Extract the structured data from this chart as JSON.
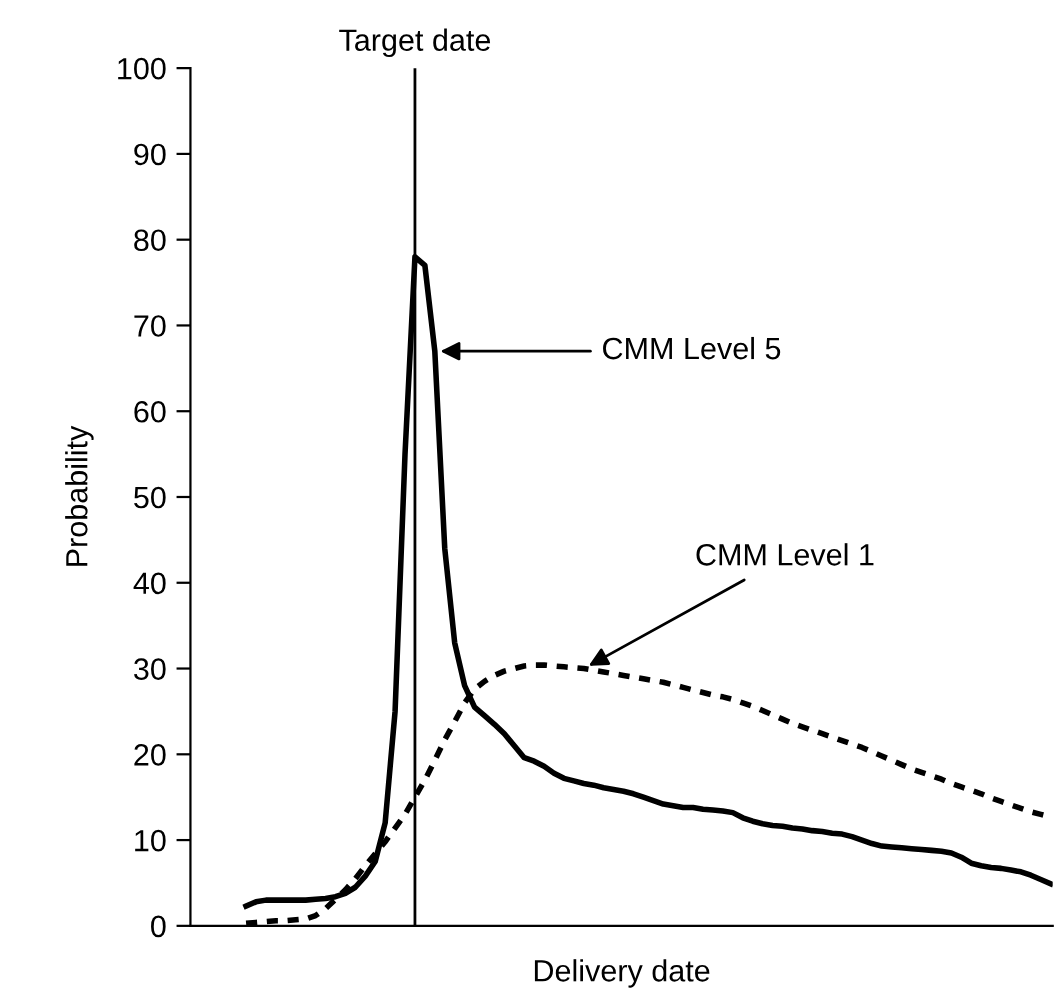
{
  "chart_data": {
    "type": "line",
    "xlabel": "Delivery date",
    "ylabel": "Probability",
    "categories": [
      null,
      null,
      null,
      null,
      null,
      null,
      null,
      null,
      null,
      null,
      null,
      null,
      null,
      null,
      null,
      null,
      null,
      null,
      null,
      null,
      null,
      null,
      null,
      null,
      null,
      null,
      null,
      null,
      null,
      null,
      null,
      null,
      null,
      null,
      null,
      null,
      null,
      null,
      null,
      null,
      null,
      null,
      null,
      null,
      null,
      null,
      null,
      null,
      null,
      null,
      null,
      null,
      null,
      null,
      null,
      null,
      null,
      null,
      null,
      null,
      null,
      null,
      null,
      null,
      null,
      null,
      null,
      null,
      null,
      null,
      null,
      null,
      null,
      null,
      null,
      null,
      null,
      null,
      null,
      null,
      null,
      null
    ],
    "series": [
      {
        "name": "CMM Level 5",
        "color": "#000000",
        "line_style": "solid",
        "values": [
          2.3,
          2.8,
          3.0,
          3.0,
          3.0,
          3.0,
          3.0,
          3.1,
          3.2,
          3.4,
          3.8,
          4.5,
          5.8,
          7.5,
          12,
          25,
          55,
          78,
          77,
          67,
          44,
          33,
          28,
          25.5,
          24.5,
          23.5,
          22.4,
          21,
          19.6,
          19.2,
          18.6,
          17.8,
          17.2,
          16.9,
          16.6,
          16.4,
          16.1,
          15.9,
          15.7,
          15.4,
          15.0,
          14.6,
          14.2,
          14.0,
          13.8,
          13.8,
          13.6,
          13.5,
          13.4,
          13.2,
          12.6,
          12.2,
          11.9,
          11.7,
          11.6,
          11.4,
          11.3,
          11.1,
          11.0,
          10.8,
          10.7,
          10.4,
          10.0,
          9.6,
          9.3,
          9.2,
          9.1,
          9.0,
          8.9,
          8.8,
          8.7,
          8.5,
          8.0,
          7.3,
          7.0,
          6.8,
          6.7,
          6.5,
          6.3,
          5.9,
          5.4,
          4.9
        ]
      },
      {
        "name": "CMM Level 1",
        "color": "#000000",
        "line_style": "dotted",
        "values": [
          0.3,
          0.4,
          0.5,
          0.6,
          0.6,
          0.7,
          0.8,
          1.2,
          2.0,
          3.1,
          4.2,
          5.5,
          7.0,
          8.4,
          9.8,
          11.4,
          13,
          15,
          17,
          19.3,
          21.7,
          23.8,
          26,
          27.6,
          28.5,
          29.2,
          29.7,
          30.0,
          30.3,
          30.4,
          30.4,
          30.3,
          30.2,
          30.1,
          30.0,
          29.8,
          29.6,
          29.4,
          29.2,
          29.0,
          28.8,
          28.6,
          28.4,
          28.1,
          27.8,
          27.5,
          27.2,
          26.9,
          26.7,
          26.4,
          26.0,
          25.6,
          25.1,
          24.6,
          24.1,
          23.6,
          23.2,
          22.8,
          22.4,
          22.0,
          21.6,
          21.2,
          20.8,
          20.3,
          19.8,
          19.3,
          18.8,
          18.3,
          17.9,
          17.5,
          17.1,
          16.6,
          16.2,
          15.8,
          15.4,
          14.9,
          14.5,
          14.1,
          13.7,
          13.3,
          13.0,
          12.7
        ]
      }
    ],
    "annotations": [
      "Target date"
    ],
    "ylim": [
      0,
      100
    ],
    "yticks": [
      0,
      10,
      20,
      30,
      40,
      50,
      60,
      70,
      80,
      90,
      100
    ],
    "grid": false,
    "legend": "right",
    "marker": "none",
    "tick_labels": "y"
  }
}
